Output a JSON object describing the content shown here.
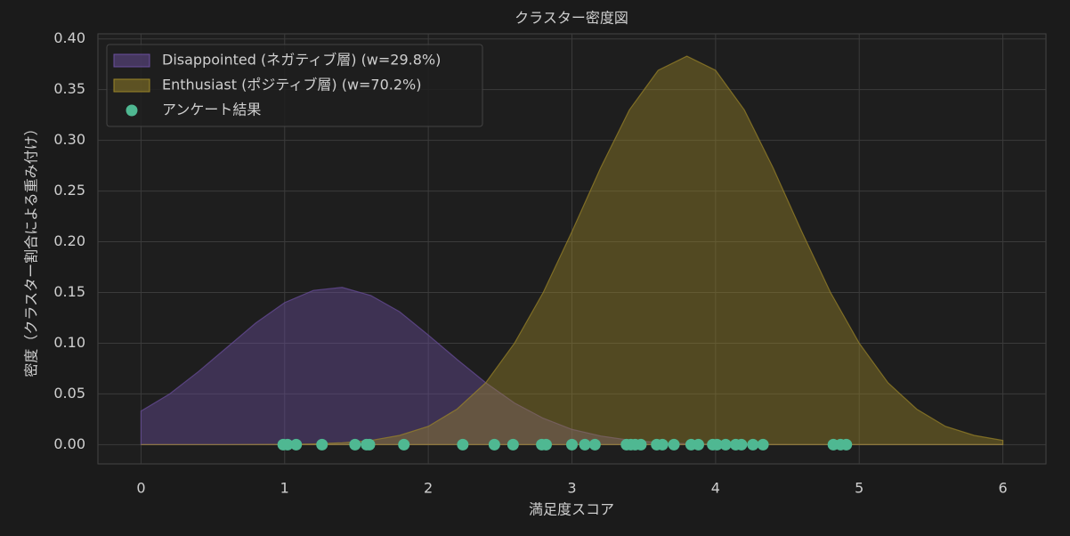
{
  "chart_data": {
    "type": "density",
    "title": "クラスター密度図",
    "xlabel": "満足度スコア",
    "ylabel": "密度（クラスター割合による重み付け）",
    "x": [
      0,
      0.2,
      0.4,
      0.6,
      0.8,
      1.0,
      1.2,
      1.4,
      1.6,
      1.8,
      2.0,
      2.2,
      2.4,
      2.6,
      2.8,
      3.0,
      3.2,
      3.4,
      3.6,
      3.8,
      4.0,
      4.2,
      4.4,
      4.6,
      4.8,
      5.0,
      5.2,
      5.4,
      5.6,
      5.8,
      6.0
    ],
    "series": [
      {
        "name": "Disappointed (ネガティブ層) (w=29.8%)",
        "type": "area",
        "color": "#6b4f9e",
        "values": [
          0.033,
          0.05,
          0.072,
          0.096,
          0.12,
          0.14,
          0.152,
          0.155,
          0.147,
          0.131,
          0.108,
          0.084,
          0.061,
          0.041,
          0.026,
          0.015,
          0.0085,
          0.0044,
          0.0021,
          0.0009,
          0.0004,
          0.0002,
          0.0001,
          0,
          0,
          0,
          0,
          0,
          0,
          0,
          0
        ]
      },
      {
        "name": "Enthusiast (ポジティブ層) (w=70.2%)",
        "type": "area",
        "color": "#9c8628",
        "values": [
          0,
          0,
          0,
          0,
          0.0001,
          0.0002,
          0.0007,
          0.0018,
          0.0041,
          0.0091,
          0.018,
          0.035,
          0.061,
          0.1,
          0.15,
          0.21,
          0.273,
          0.33,
          0.369,
          0.383,
          0.369,
          0.33,
          0.273,
          0.21,
          0.15,
          0.1,
          0.061,
          0.035,
          0.018,
          0.0091,
          0.0041
        ]
      },
      {
        "name": "アンケート結果",
        "type": "scatter",
        "color": "#4fb892",
        "x": [
          0.99,
          1.02,
          1.08,
          1.26,
          1.49,
          1.57,
          1.59,
          1.83,
          2.24,
          2.46,
          2.59,
          2.79,
          2.82,
          3.0,
          3.09,
          3.16,
          3.38,
          3.41,
          3.44,
          3.48,
          3.59,
          3.63,
          3.71,
          3.83,
          3.88,
          3.98,
          4.01,
          4.07,
          4.14,
          4.18,
          4.26,
          4.33,
          4.82,
          4.87,
          4.91
        ],
        "values": [
          0,
          0,
          0,
          0,
          0,
          0,
          0,
          0,
          0,
          0,
          0,
          0,
          0,
          0,
          0,
          0,
          0,
          0,
          0,
          0,
          0,
          0,
          0,
          0,
          0,
          0,
          0,
          0,
          0,
          0,
          0,
          0,
          0,
          0,
          0
        ]
      }
    ],
    "xlim": [
      -0.3,
      6.3
    ],
    "ylim": [
      -0.019,
      0.405
    ],
    "xticks": [
      0,
      1,
      2,
      3,
      4,
      5,
      6
    ],
    "yticks": [
      {
        "value": 0,
        "label": "0.00"
      },
      {
        "value": 0.05,
        "label": "0.05"
      },
      {
        "value": 0.1,
        "label": "0.10"
      },
      {
        "value": 0.15,
        "label": "0.15"
      },
      {
        "value": 0.2,
        "label": "0.20"
      },
      {
        "value": 0.25,
        "label": "0.25"
      },
      {
        "value": 0.3,
        "label": "0.30"
      },
      {
        "value": 0.35,
        "label": "0.35"
      },
      {
        "value": 0.4,
        "label": "0.40"
      }
    ],
    "grid": true,
    "legend": "upper left"
  }
}
